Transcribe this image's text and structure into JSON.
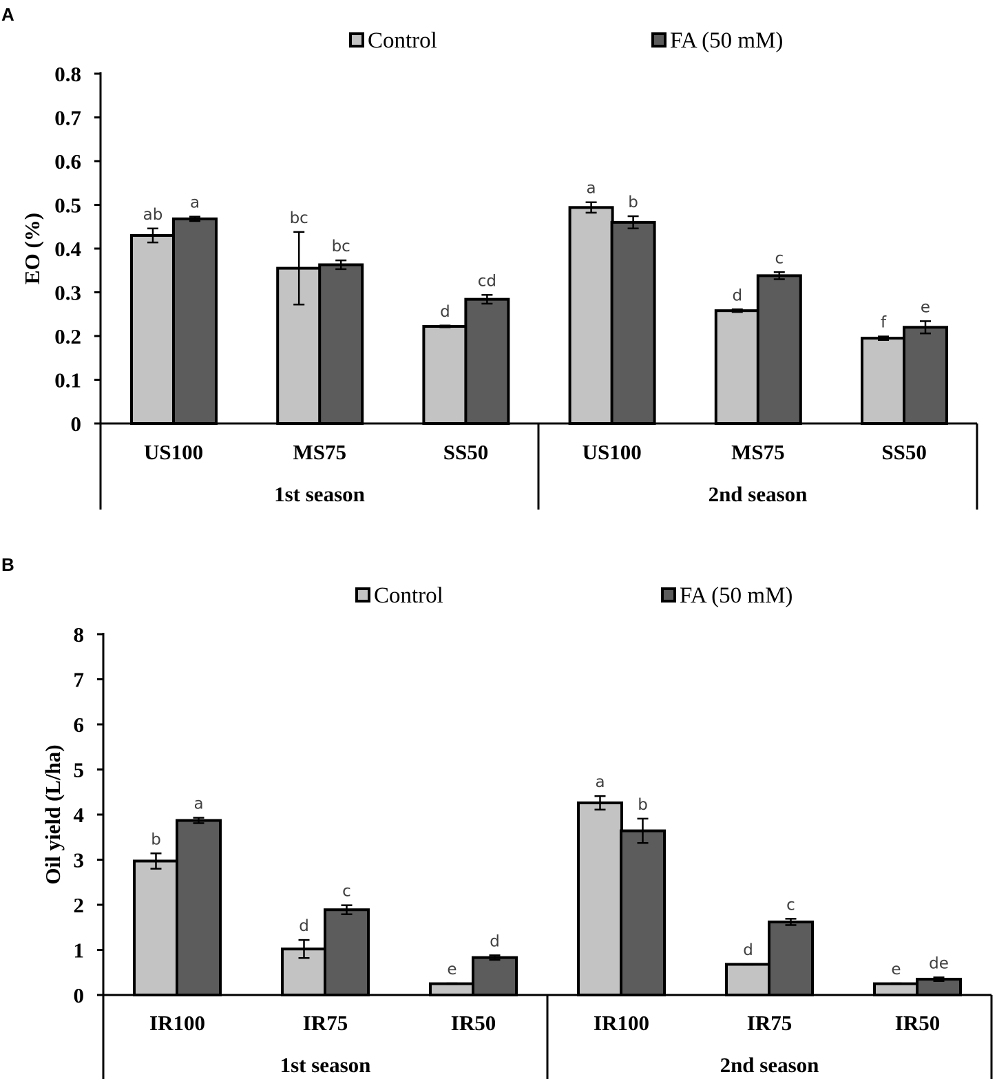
{
  "panels": [
    {
      "letter": "A"
    },
    {
      "letter": "B"
    }
  ],
  "chart_data": [
    {
      "type": "bar",
      "panel": "A",
      "title": "",
      "ylabel": "EO (%)",
      "ylim": [
        0,
        0.8
      ],
      "yticks": [
        0,
        0.1,
        0.2,
        0.3,
        0.4,
        0.5,
        0.6,
        0.7,
        0.8
      ],
      "ytick_labels": [
        "0",
        "0.1",
        "0.2",
        "0.3",
        "0.4",
        "0.5",
        "0.6",
        "0.7",
        "0.8"
      ],
      "categories": [
        "US100",
        "MS75",
        "SS50",
        "US100",
        "MS75",
        "SS50"
      ],
      "groups": [
        "1st season",
        "2nd season"
      ],
      "legend": [
        "Control",
        "FA (50 mM)"
      ],
      "colors": {
        "Control": "#c3c3c3",
        "FA (50 mM)": "#5c5c5c"
      },
      "series": [
        {
          "name": "Control",
          "values": [
            0.43,
            0.355,
            0.222,
            0.494,
            0.258,
            0.195
          ],
          "errors": [
            0.016,
            0.083,
            0.002,
            0.012,
            0.003,
            0.004
          ],
          "letters": [
            "ab",
            "bc",
            "d",
            "a",
            "d",
            "f"
          ]
        },
        {
          "name": "FA (50 mM)",
          "values": [
            0.468,
            0.363,
            0.284,
            0.46,
            0.338,
            0.22
          ],
          "errors": [
            0.005,
            0.01,
            0.01,
            0.014,
            0.008,
            0.014
          ],
          "letters": [
            "a",
            "bc",
            "cd",
            "b",
            "c",
            "e"
          ]
        }
      ]
    },
    {
      "type": "bar",
      "panel": "B",
      "title": "",
      "ylabel": "Oil yield (L/ha)",
      "ylim": [
        0,
        8
      ],
      "yticks": [
        0,
        1,
        2,
        3,
        4,
        5,
        6,
        7,
        8
      ],
      "ytick_labels": [
        "0",
        "1",
        "2",
        "3",
        "4",
        "5",
        "6",
        "7",
        "8"
      ],
      "categories": [
        "IR100",
        "IR75",
        "IR50",
        "IR100",
        "IR75",
        "IR50"
      ],
      "groups": [
        "1st season",
        "2nd season"
      ],
      "legend": [
        "Control",
        "FA (50 mM)"
      ],
      "colors": {
        "Control": "#c3c3c3",
        "FA (50 mM)": "#5c5c5c"
      },
      "series": [
        {
          "name": "Control",
          "values": [
            2.97,
            1.02,
            0.25,
            4.26,
            0.68,
            0.25
          ],
          "errors": [
            0.17,
            0.2,
            0.01,
            0.15,
            0.01,
            0.01
          ],
          "letters": [
            "b",
            "d",
            "e",
            "a",
            "d",
            "e"
          ]
        },
        {
          "name": "FA (50 mM)",
          "values": [
            3.87,
            1.89,
            0.83,
            3.64,
            1.62,
            0.35
          ],
          "errors": [
            0.06,
            0.1,
            0.05,
            0.27,
            0.07,
            0.04
          ],
          "letters": [
            "a",
            "c",
            "d",
            "b",
            "c",
            "de"
          ]
        }
      ]
    }
  ]
}
